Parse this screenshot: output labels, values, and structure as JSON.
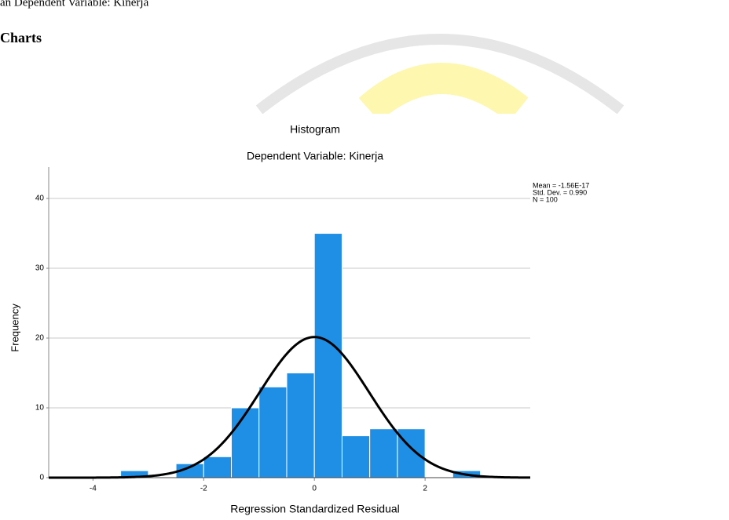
{
  "document": {
    "top_text": "an Dependent Variable: Kinerja",
    "heading": "Charts"
  },
  "chart_data": {
    "type": "histogram",
    "title": "Histogram",
    "subtitle": "Dependent Variable: Kinerja",
    "x_label": "Regression Standardized Residual",
    "y_label": "Frequency",
    "bins": [
      -3.5,
      -3,
      -2.5,
      -2,
      -1.5,
      -1,
      -0.5,
      0,
      0.5,
      1,
      1.5,
      2,
      2.5,
      3
    ],
    "counts": [
      1,
      0,
      2,
      3,
      10,
      13,
      15,
      35,
      6,
      7,
      7,
      0,
      1
    ],
    "color": "#1f8fe6",
    "xlim": [
      -4.8,
      3.9
    ],
    "xticks": [
      -4,
      -2,
      0,
      2
    ],
    "ylim": [
      0,
      44.5
    ],
    "yticks": [
      0,
      10,
      20,
      30,
      40
    ],
    "grid": true,
    "normal_curve": {
      "mean": -1.56e-17,
      "std_dev": 0.99,
      "n": 100,
      "color": "#000000"
    },
    "stats_text": [
      "Mean = -1.56E-17",
      "Std. Dev. = 0.990",
      "N = 100"
    ]
  }
}
